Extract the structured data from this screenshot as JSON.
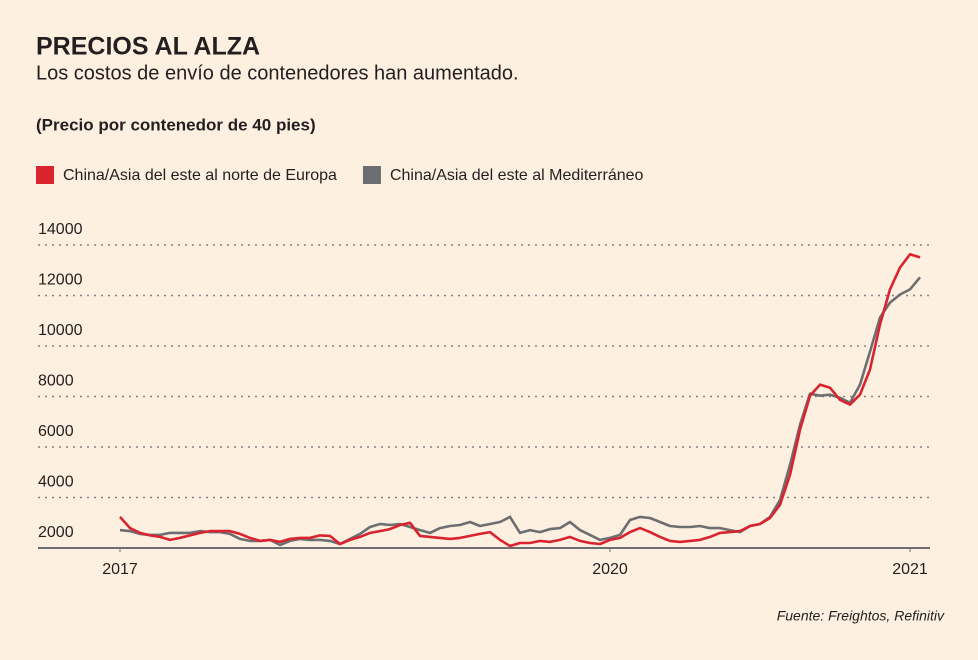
{
  "chart_data": {
    "type": "line",
    "title": "PRECIOS AL ALZA",
    "subtitle": "Los costos de envío de contenedores han aumentado.",
    "y_label": "(Precio por contenedor de 40 pies)",
    "source": "Fuente: Freightos, Refinitiv",
    "x": [
      0,
      1,
      2,
      3,
      4,
      5,
      6,
      7,
      8,
      9,
      10,
      11,
      12,
      13,
      14,
      15,
      16,
      17,
      18,
      19,
      20,
      21,
      22,
      23,
      24,
      25,
      26,
      27,
      28,
      29,
      30,
      31,
      32,
      33,
      34,
      35,
      36,
      37,
      38,
      39,
      40,
      41,
      42,
      43,
      44,
      45,
      46,
      47,
      48,
      49,
      50,
      51,
      52,
      53,
      54,
      55,
      56,
      57,
      58,
      59,
      60,
      61,
      62,
      63,
      64,
      65,
      66,
      67,
      68,
      69,
      70,
      71,
      72,
      73,
      74,
      75,
      76,
      77,
      78,
      79,
      80
    ],
    "xlim": [
      -5,
      81
    ],
    "xticks": [
      {
        "value": 0,
        "label": "2017"
      },
      {
        "value": 49,
        "label": "2020"
      },
      {
        "value": 79,
        "label": "2021"
      }
    ],
    "ylim": [
      2000,
      14000
    ],
    "yticks": [
      2000,
      4000,
      6000,
      8000,
      10000,
      12000,
      14000
    ],
    "grid": true,
    "legend": "top-left",
    "series": [
      {
        "name": "China/Asia del este al norte de Europa",
        "color": "#d9232e",
        "values": [
          3230,
          2790,
          2600,
          2500,
          2440,
          2320,
          2400,
          2500,
          2600,
          2670,
          2670,
          2670,
          2560,
          2400,
          2280,
          2320,
          2240,
          2360,
          2400,
          2400,
          2500,
          2480,
          2160,
          2320,
          2440,
          2600,
          2670,
          2750,
          2910,
          3000,
          2480,
          2440,
          2400,
          2360,
          2400,
          2480,
          2560,
          2630,
          2320,
          2080,
          2200,
          2200,
          2280,
          2240,
          2320,
          2440,
          2280,
          2200,
          2160,
          2320,
          2400,
          2630,
          2790,
          2630,
          2440,
          2280,
          2240,
          2280,
          2320,
          2440,
          2600,
          2630,
          2670,
          2870,
          2950,
          3190,
          3710,
          4900,
          6680,
          8030,
          8470,
          8350,
          7870,
          7680,
          8070,
          9070,
          10850,
          12240,
          13110,
          13630,
          13510
        ]
      },
      {
        "name": "China/Asia del este al Mediterráneo",
        "color": "#6d6e71",
        "values": [
          2710,
          2670,
          2560,
          2520,
          2520,
          2600,
          2600,
          2600,
          2670,
          2630,
          2630,
          2560,
          2360,
          2280,
          2280,
          2320,
          2120,
          2280,
          2360,
          2320,
          2320,
          2280,
          2160,
          2360,
          2560,
          2830,
          2950,
          2910,
          2950,
          2830,
          2710,
          2600,
          2790,
          2870,
          2910,
          3030,
          2870,
          2950,
          3030,
          3230,
          2600,
          2710,
          2630,
          2750,
          2790,
          3030,
          2710,
          2520,
          2320,
          2400,
          2520,
          3110,
          3230,
          3190,
          3030,
          2870,
          2830,
          2830,
          2870,
          2790,
          2790,
          2710,
          2630,
          2870,
          2950,
          3230,
          3900,
          5290,
          6880,
          8110,
          8030,
          8070,
          7950,
          7750,
          8470,
          9780,
          11130,
          11720,
          12040,
          12240,
          12720
        ]
      }
    ]
  }
}
